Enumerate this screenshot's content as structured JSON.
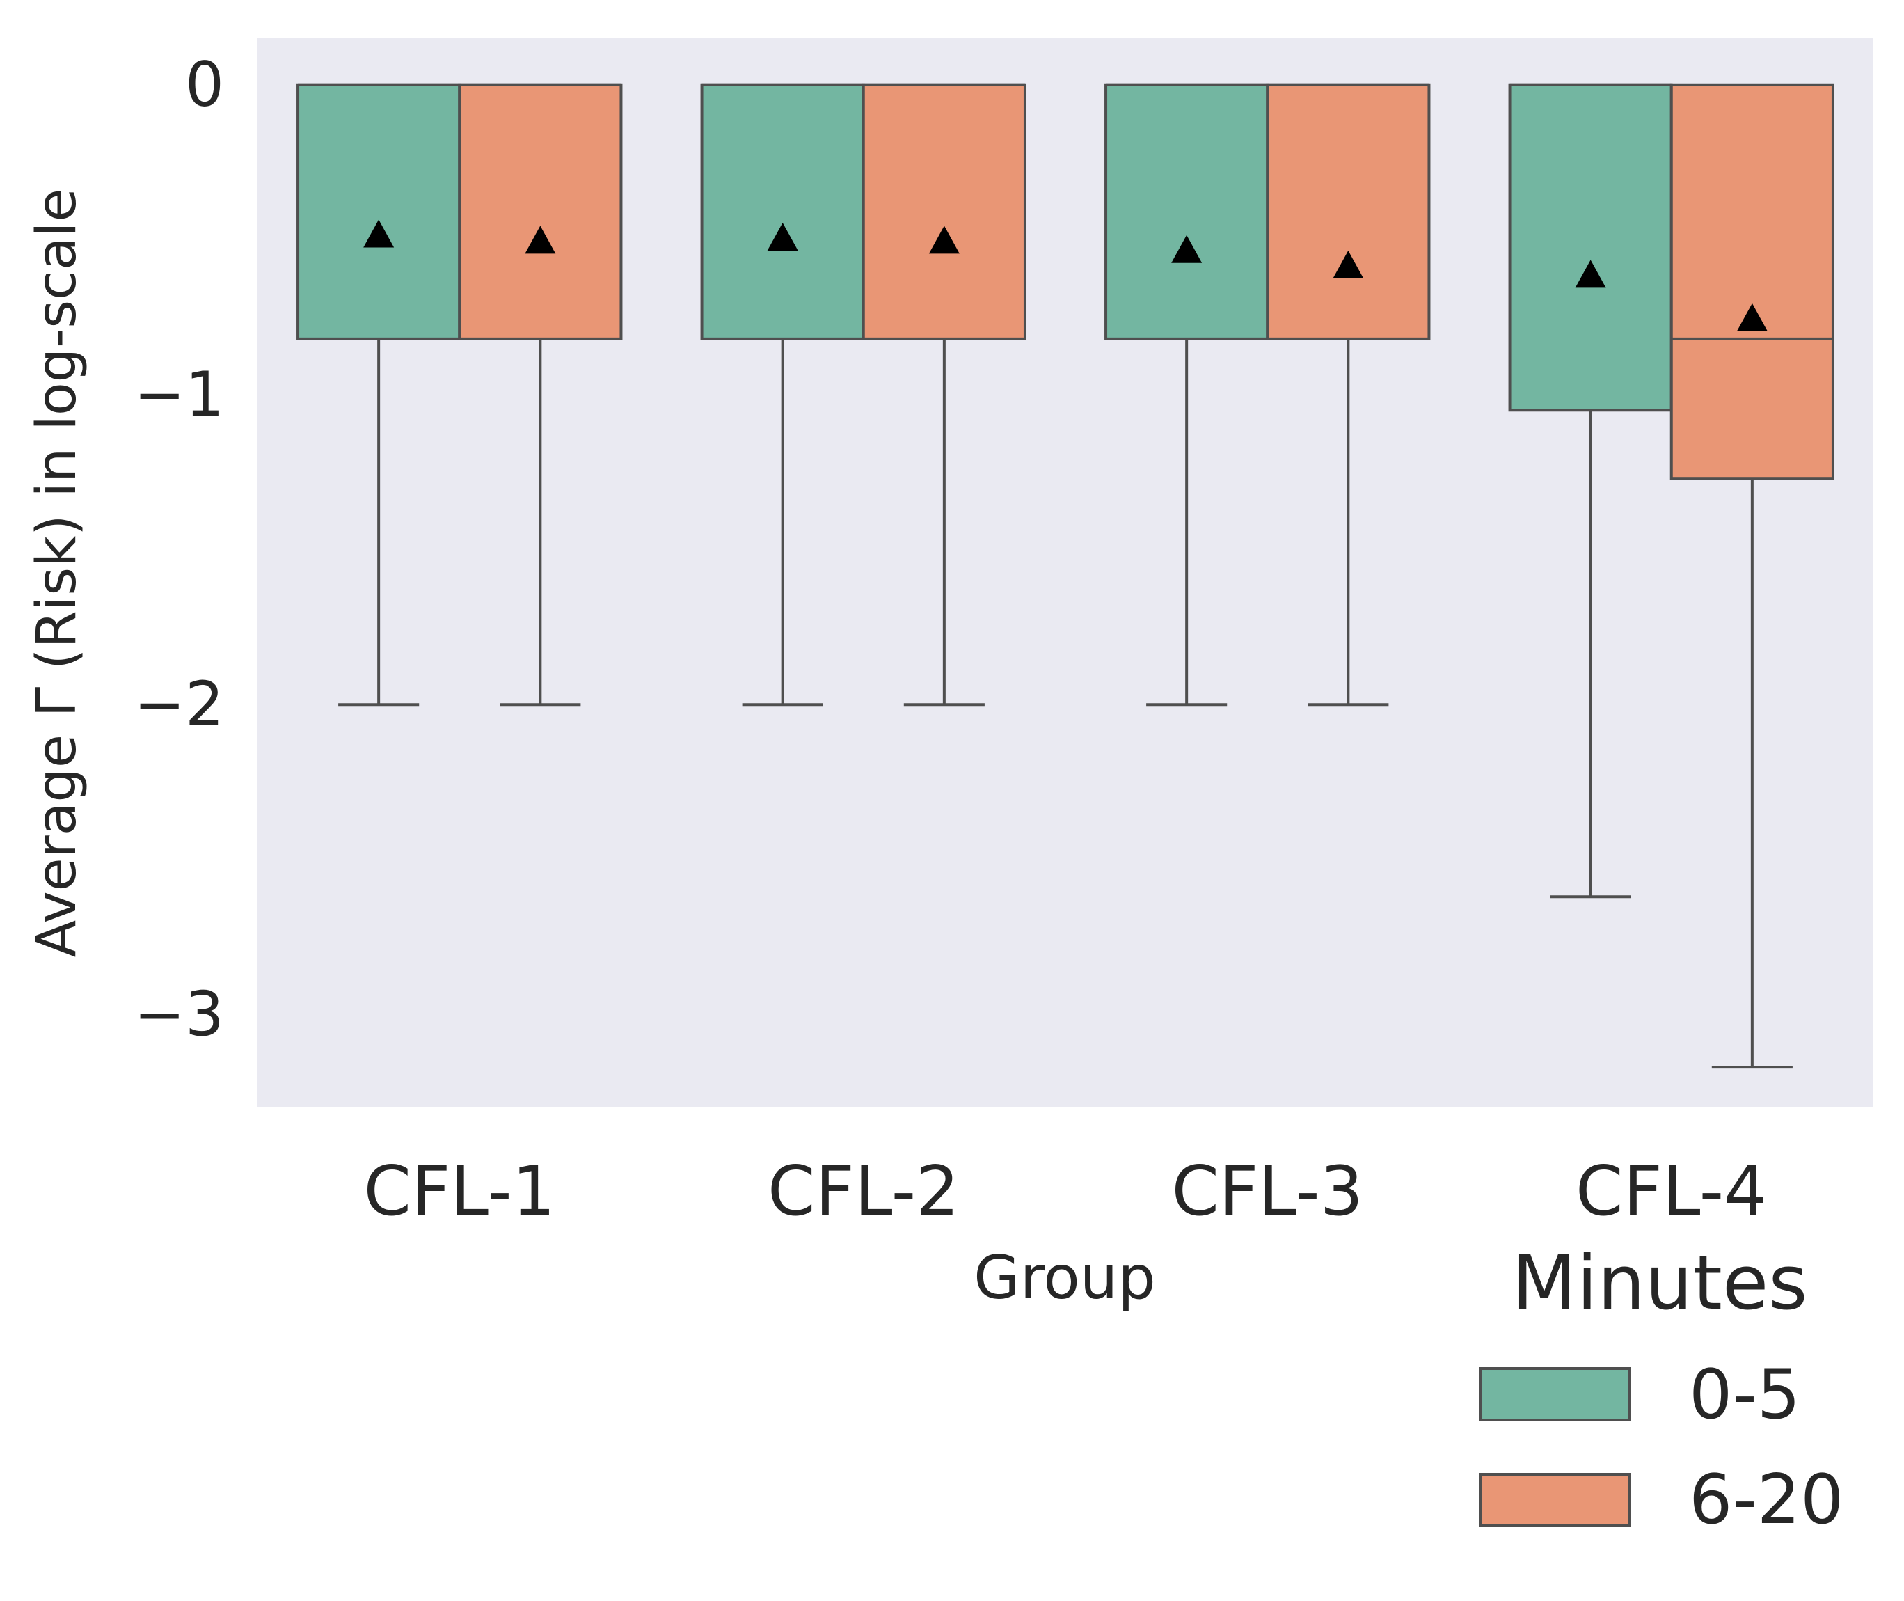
{
  "chart_data": {
    "type": "box",
    "xlabel": "Group",
    "ylabel": "Average Γ (Risk) in log-scale",
    "categories": [
      "CFL-1",
      "CFL-2",
      "CFL-3",
      "CFL-4"
    ],
    "ylim": [
      -3.3,
      0.15
    ],
    "yticks": [
      {
        "value": 0,
        "label": "0"
      },
      {
        "value": -1,
        "label": "−1"
      },
      {
        "value": -2,
        "label": "−2"
      },
      {
        "value": -3,
        "label": "−3"
      }
    ],
    "grid": false,
    "legend": {
      "title": "Minutes",
      "placement": "bottom-right"
    },
    "series": [
      {
        "name": "0-5",
        "color": "#73b6a1",
        "boxes": [
          {
            "category": "CFL-1",
            "whisker_low": -2.0,
            "q1": -0.82,
            "median": 0.0,
            "q3": 0.0,
            "whisker_high": 0.0,
            "mean": -0.48
          },
          {
            "category": "CFL-2",
            "whisker_low": -2.0,
            "q1": -0.82,
            "median": 0.0,
            "q3": 0.0,
            "whisker_high": 0.0,
            "mean": -0.49
          },
          {
            "category": "CFL-3",
            "whisker_low": -2.0,
            "q1": -0.82,
            "median": 0.0,
            "q3": 0.0,
            "whisker_high": 0.0,
            "mean": -0.53
          },
          {
            "category": "CFL-4",
            "whisker_low": -2.62,
            "q1": -1.05,
            "median": 0.0,
            "q3": 0.0,
            "whisker_high": 0.0,
            "mean": -0.61
          }
        ]
      },
      {
        "name": "6-20",
        "color": "#e99675",
        "boxes": [
          {
            "category": "CFL-1",
            "whisker_low": -2.0,
            "q1": -0.82,
            "median": 0.0,
            "q3": 0.0,
            "whisker_high": 0.0,
            "mean": -0.5
          },
          {
            "category": "CFL-2",
            "whisker_low": -2.0,
            "q1": -0.82,
            "median": 0.0,
            "q3": 0.0,
            "whisker_high": 0.0,
            "mean": -0.5
          },
          {
            "category": "CFL-3",
            "whisker_low": -2.0,
            "q1": -0.82,
            "median": 0.0,
            "q3": 0.0,
            "whisker_high": 0.0,
            "mean": -0.58
          },
          {
            "category": "CFL-4",
            "whisker_low": -3.17,
            "q1": -1.27,
            "median": -0.82,
            "q3": 0.0,
            "whisker_high": 0.0,
            "mean": -0.75
          }
        ]
      }
    ]
  }
}
